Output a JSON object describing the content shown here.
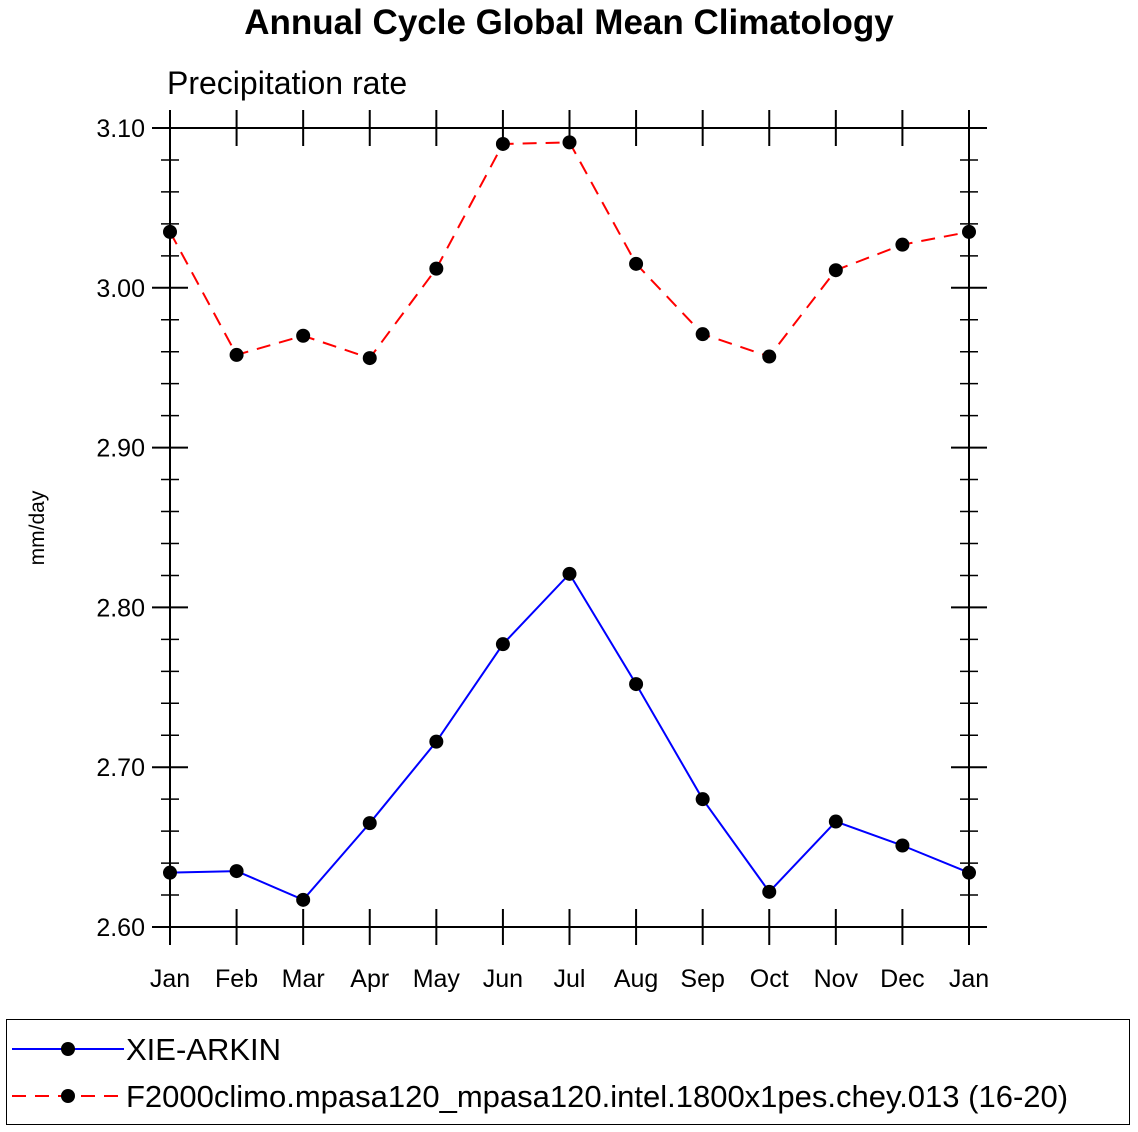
{
  "chart_data": {
    "type": "line",
    "title": "Annual Cycle Global Mean Climatology",
    "subtitle": "Precipitation rate",
    "xlabel": "",
    "ylabel": "mm/day",
    "ylim": [
      2.6,
      3.1
    ],
    "yticks": [
      "2.60",
      "2.70",
      "2.80",
      "2.90",
      "3.00",
      "3.10"
    ],
    "categories": [
      "Jan",
      "Feb",
      "Mar",
      "Apr",
      "May",
      "Jun",
      "Jul",
      "Aug",
      "Sep",
      "Oct",
      "Nov",
      "Dec",
      "Jan"
    ],
    "series": [
      {
        "name": "XIE-ARKIN",
        "color": "#0000ff",
        "dash": "solid",
        "marker": "filled-circle",
        "values": [
          2.634,
          2.635,
          2.617,
          2.665,
          2.716,
          2.777,
          2.821,
          2.752,
          2.68,
          2.622,
          2.666,
          2.651,
          2.634
        ]
      },
      {
        "name": "F2000climo.mpasa120_mpasa120.intel.1800x1pes.chey.013 (16-20)",
        "color": "#ff0000",
        "dash": "dashed",
        "marker": "filled-circle",
        "values": [
          3.035,
          2.958,
          2.97,
          2.956,
          3.012,
          3.09,
          3.091,
          3.015,
          2.971,
          2.957,
          3.011,
          3.027,
          3.035
        ]
      }
    ],
    "legend_position": "bottom"
  }
}
